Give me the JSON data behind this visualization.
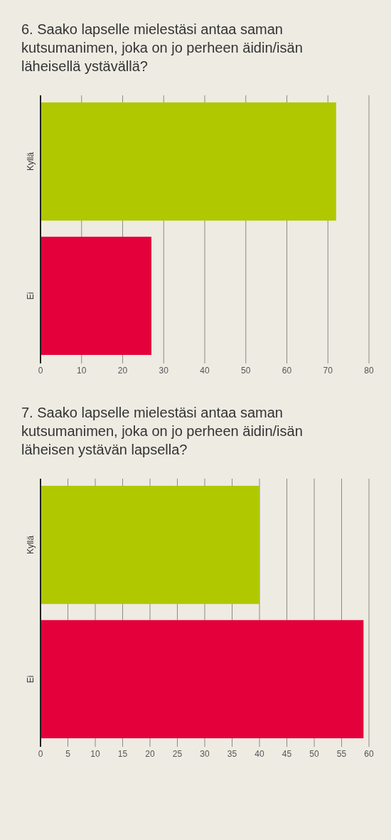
{
  "chart_data": [
    {
      "type": "bar",
      "orientation": "horizontal",
      "title": "6. Saako lapselle mielestäsi antaa saman kutsumanimen, joka on jo perheen äidin/isän läheisellä ystävällä?",
      "categories": [
        "Kyllä",
        "Ei"
      ],
      "values": [
        72,
        27
      ],
      "colors": [
        "#b0c800",
        "#e4003b"
      ],
      "xlim": [
        0,
        80
      ],
      "xticks": [
        0,
        10,
        20,
        30,
        40,
        50,
        60,
        70,
        80
      ],
      "grid": "x"
    },
    {
      "type": "bar",
      "orientation": "horizontal",
      "title": "7. Saako lapselle mielestäsi antaa saman kutsumanimen, joka on jo perheen äidin/isän läheisen ystävän lapsella?",
      "categories": [
        "Kyllä",
        "Ei"
      ],
      "values": [
        40,
        59
      ],
      "colors": [
        "#b0c800",
        "#e4003b"
      ],
      "xlim": [
        0,
        60
      ],
      "xticks": [
        0,
        5,
        10,
        15,
        20,
        25,
        30,
        35,
        40,
        45,
        50,
        55,
        60
      ],
      "grid": "x"
    }
  ]
}
